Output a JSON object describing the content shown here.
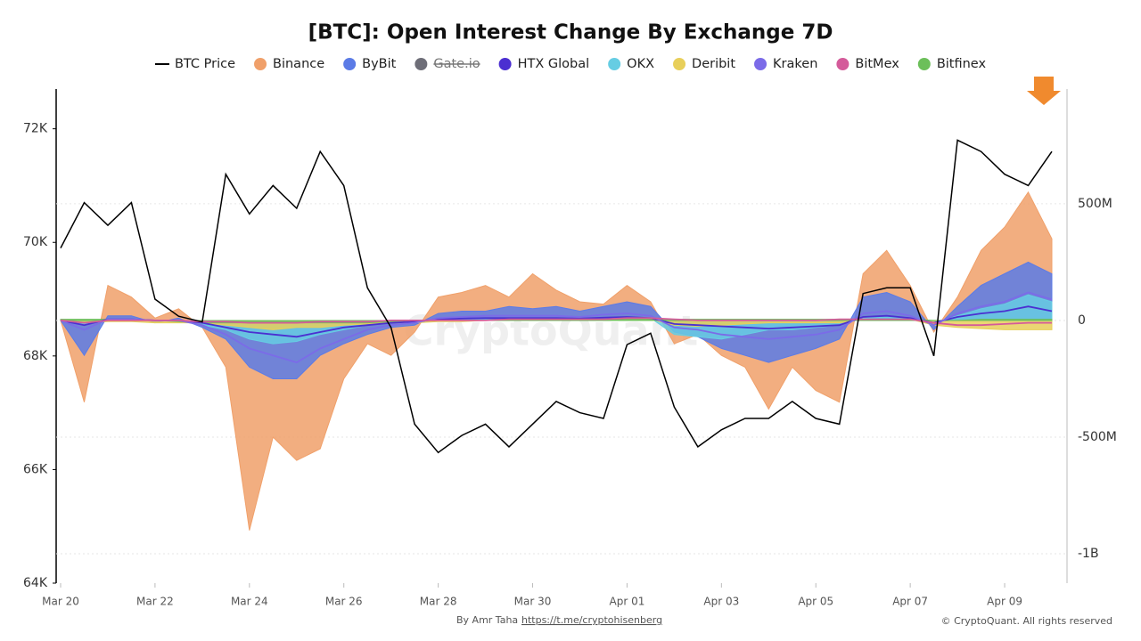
{
  "chart_data": {
    "type": "combo",
    "title": "[BTC]: Open Interest Change By Exchange 7D",
    "watermark": "CryptoQuant",
    "credit": "By Amr Taha",
    "credit_link": "https://t.me/cryptohisenberg",
    "copyright": "© CryptoQuant. All rights reserved",
    "categories": [
      "Mar 20",
      null,
      null,
      null,
      "Mar 22",
      null,
      null,
      null,
      "Mar 24",
      null,
      null,
      null,
      "Mar 26",
      null,
      null,
      null,
      "Mar 28",
      null,
      null,
      null,
      "Mar 30",
      null,
      null,
      null,
      "Apr 01",
      null,
      null,
      null,
      "Apr 03",
      null,
      null,
      null,
      "Apr 05",
      null,
      null,
      null,
      "Apr 07",
      null,
      null,
      null,
      "Apr 09",
      null,
      null
    ],
    "ylim": [
      64000,
      72700
    ],
    "yticks": [
      {
        "value": 64000,
        "label": "64K"
      },
      {
        "value": 66000,
        "label": "66K"
      },
      {
        "value": 68000,
        "label": "68K"
      },
      {
        "value": 70000,
        "label": "70K"
      },
      {
        "value": 72000,
        "label": "72K"
      }
    ],
    "y2lim": [
      -1126,
      992
    ],
    "y2ticks": [
      {
        "value": -1000,
        "label": "-1B"
      },
      {
        "value": -500,
        "label": "-500M"
      },
      0,
      {
        "value": 500,
        "label": "500M"
      }
    ],
    "grid": true,
    "series": [
      {
        "name": "BTC Price",
        "color": "#000000",
        "mark": "line",
        "values": [
          69900,
          70700,
          70300,
          70700,
          69000,
          68700,
          68600,
          71200,
          70500,
          71000,
          70600,
          71600,
          71000,
          69200,
          68500,
          66800,
          66300,
          66600,
          66800,
          66400,
          66800,
          67200,
          67000,
          66900,
          68200,
          68400,
          67100,
          66400,
          66700,
          66900,
          66900,
          67200,
          66900,
          66800,
          69100,
          69200,
          69200,
          68000,
          71800,
          71600,
          71200,
          71000,
          71600
        ]
      },
      {
        "name": "Binance",
        "color": "#f0a06a",
        "mark": "area",
        "axis": "y2",
        "values": [
          0,
          -350,
          150,
          100,
          10,
          50,
          -30,
          -200,
          -900,
          -500,
          -600,
          -550,
          -250,
          -100,
          -150,
          -50,
          100,
          120,
          150,
          100,
          200,
          130,
          80,
          70,
          150,
          80,
          -100,
          -60,
          -150,
          -200,
          -380,
          -200,
          -300,
          -350,
          200,
          300,
          150,
          -50,
          100,
          300,
          400,
          550,
          350
        ]
      },
      {
        "name": "ByBit",
        "color": "#5b7be6",
        "mark": "area",
        "axis": "y2",
        "values": [
          0,
          -150,
          20,
          20,
          -10,
          10,
          -30,
          -80,
          -200,
          -250,
          -250,
          -150,
          -100,
          -60,
          -30,
          -20,
          30,
          40,
          40,
          60,
          50,
          60,
          40,
          60,
          80,
          60,
          -50,
          -70,
          -120,
          -150,
          -180,
          -150,
          -120,
          -80,
          100,
          120,
          80,
          -40,
          60,
          150,
          200,
          250,
          200
        ]
      },
      {
        "name": "Gate.io",
        "color": "#6e6e78",
        "mark": "hidden",
        "axis": "y2"
      },
      {
        "name": "HTX Global",
        "color": "#4b2fd1",
        "mark": "line",
        "axis": "y2",
        "values": [
          0,
          -20,
          5,
          5,
          0,
          0,
          -10,
          -30,
          -50,
          -60,
          -70,
          -50,
          -30,
          -20,
          -10,
          -5,
          5,
          8,
          10,
          10,
          10,
          10,
          8,
          12,
          15,
          10,
          -15,
          -20,
          -25,
          -30,
          -35,
          -30,
          -25,
          -20,
          15,
          20,
          10,
          -10,
          15,
          30,
          40,
          60,
          40
        ]
      },
      {
        "name": "OKX",
        "color": "#66cde3",
        "mark": "area",
        "axis": "y2",
        "values": [
          0,
          -20,
          5,
          5,
          0,
          0,
          -20,
          -40,
          -80,
          -100,
          -90,
          -60,
          -40,
          -20,
          -10,
          -10,
          0,
          5,
          10,
          5,
          5,
          10,
          5,
          10,
          15,
          10,
          -60,
          -70,
          -80,
          -60,
          -40,
          -40,
          -30,
          -20,
          10,
          15,
          10,
          -10,
          20,
          50,
          70,
          110,
          80
        ]
      },
      {
        "name": "Deribit",
        "color": "#e8cf5a",
        "mark": "area",
        "axis": "y2",
        "values": [
          0,
          -10,
          -5,
          -5,
          -10,
          -10,
          -10,
          -20,
          -30,
          -40,
          -30,
          -30,
          -20,
          -15,
          -10,
          -10,
          -5,
          -5,
          0,
          0,
          0,
          5,
          5,
          5,
          5,
          5,
          -20,
          -25,
          -20,
          -15,
          -10,
          -10,
          -10,
          -10,
          5,
          5,
          5,
          -20,
          -30,
          -35,
          -40,
          -40,
          -40
        ]
      },
      {
        "name": "Kraken",
        "color": "#7b6be8",
        "mark": "line",
        "axis": "y2",
        "values": [
          0,
          -40,
          5,
          5,
          0,
          0,
          -20,
          -60,
          -120,
          -150,
          -180,
          -120,
          -80,
          -40,
          -20,
          -10,
          10,
          15,
          20,
          20,
          20,
          20,
          15,
          25,
          30,
          20,
          -30,
          -40,
          -60,
          -70,
          -80,
          -70,
          -60,
          -40,
          30,
          40,
          20,
          -20,
          30,
          60,
          80,
          120,
          90
        ]
      },
      {
        "name": "BitMex",
        "color": "#d45b9a",
        "mark": "line",
        "axis": "y2",
        "values": [
          0,
          -10,
          0,
          0,
          0,
          0,
          -5,
          -5,
          -10,
          -10,
          -10,
          -5,
          -5,
          -5,
          0,
          0,
          0,
          0,
          0,
          5,
          5,
          5,
          5,
          5,
          10,
          10,
          5,
          0,
          0,
          0,
          0,
          0,
          0,
          5,
          5,
          5,
          5,
          -10,
          -20,
          -20,
          -15,
          -10,
          -10
        ]
      },
      {
        "name": "Bitfinex",
        "color": "#6cbf5a",
        "mark": "area",
        "axis": "y2",
        "values": [
          5,
          5,
          5,
          5,
          0,
          -5,
          -10,
          -10,
          -10,
          -10,
          -10,
          -10,
          -10,
          -10,
          -5,
          0,
          0,
          0,
          0,
          0,
          0,
          0,
          0,
          5,
          5,
          5,
          5,
          5,
          5,
          5,
          5,
          5,
          5,
          5,
          5,
          5,
          5,
          0,
          0,
          5,
          5,
          5,
          5
        ]
      }
    ]
  }
}
